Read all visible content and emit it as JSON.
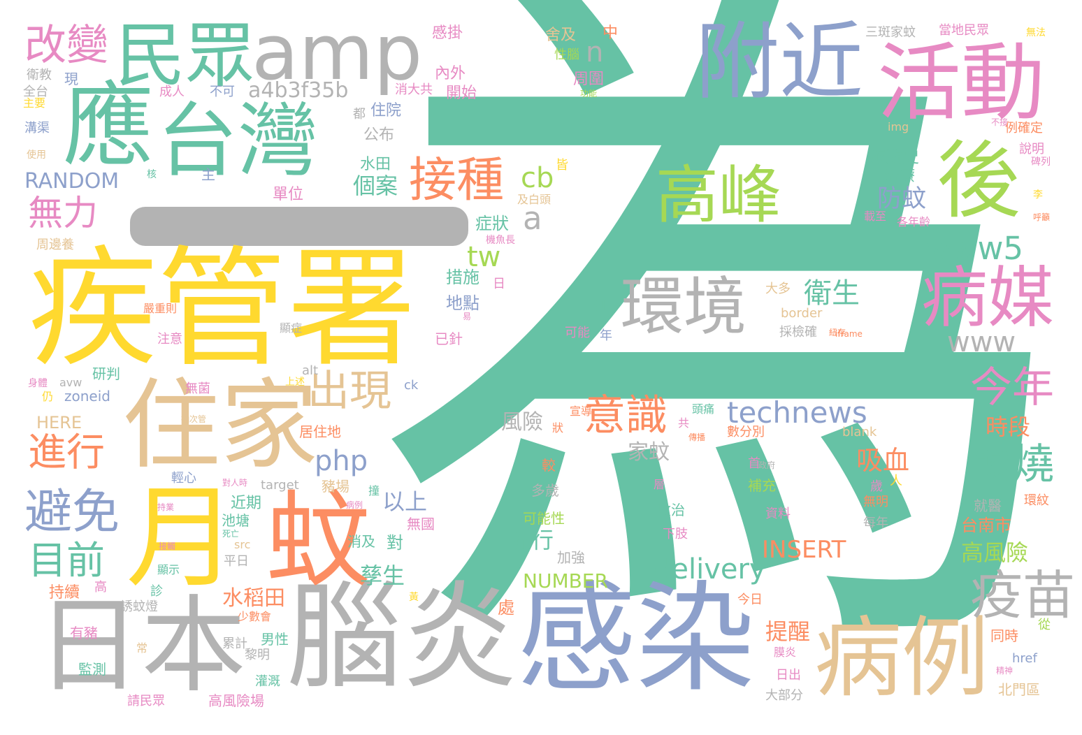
{
  "palette": {
    "teal": "#66c2a5",
    "orange": "#fc8d62",
    "blue": "#8da0cb",
    "pink": "#e78ac3",
    "lime": "#a6d854",
    "yellow": "#ffd92f",
    "tan": "#e5c494",
    "gray": "#b3b3b3"
  },
  "words": {
    "w1": "為",
    "w2": "疾管署",
    "w3": "感染",
    "w4": "腦炎",
    "w5": "日本",
    "w6": "蚊",
    "w7": "月",
    "w8": "住家",
    "w9": "應",
    "w10": "台灣",
    "w11": "活動",
    "w12": "附近",
    "w13": "病例",
    "w14": "amp",
    "w15": "民眾",
    "w16": "後",
    "w17": "高峰",
    "w18": "環境",
    "w19": "病媒",
    "w20": "疫苗",
    "w21": "接種",
    "w22": "避免",
    "w23": "改變",
    "w24": "無力",
    "w25": "進行",
    "w26": "目前",
    "w27": "出現",
    "w28": "意識",
    "w29": "今年",
    "w30": "發燒",
    "w31": "www5",
    "w32": "www",
    "w33": "technews",
    "w34": "delivery",
    "w35": "php",
    "w36": "a4b3f35b",
    "w37": "RANDOM",
    "w38": "INSERT",
    "w39": "NUMBER",
    "w40": "衛生",
    "w41": "防蚊",
    "w42": "吸血",
    "w43": "時段",
    "w44": "高風險",
    "w45": "台南市",
    "w46": "個案",
    "w47": "水稻田",
    "w48": "孳生",
    "w49": "流行",
    "w50": "以上",
    "w51": "提醒",
    "w52": "tw",
    "w53": "cb",
    "w54": "a",
    "w55": "n",
    "w56": "風險",
    "w57": "家蚊",
    "w58": "旅遊史",
    "w59": "治療",
    "w60": "症狀",
    "w61": "措施",
    "w62": "地點",
    "w63": "單位",
    "w64": "水田",
    "w65": "公布",
    "w66": "住院",
    "w67": "周圍",
    "w68": "開始",
    "w69": "內外",
    "w70": "慼掛",
    "w71": "舍及",
    "w72": "性腦",
    "w73": "中",
    "w74": "三斑家蚊",
    "w75": "當地民眾",
    "w76": "無法",
    "w77": "消大共",
    "w78": "成人",
    "w79": "不可",
    "w80": "都",
    "w81": "現",
    "w82": "衛教",
    "w83": "全台",
    "w84": "主要",
    "w85": "溝渠",
    "w86": "使用",
    "w87": "主",
    "w88": "核",
    "w89": "皆",
    "w90": "及白頭",
    "w91": "周邊養",
    "w92": "機魚長",
    "w93": "日",
    "w94": "研判",
    "w95": "注意",
    "w96": "嚴重則",
    "w97": "顯症",
    "w98": "已針",
    "w99": "例",
    "w100": "可能",
    "w101": "年",
    "w102": "大多",
    "w103": "border",
    "w104": "採檢確",
    "w105": "iframe",
    "w106": "img",
    "w107": "例確定",
    "w108": "說明",
    "w109": "碑列",
    "w110": "各年齡",
    "w111": "載至",
    "w112": "alt",
    "w113": "ck",
    "w114": "avw",
    "w115": "zoneid",
    "w116": "HERE",
    "w117": "無菌",
    "w118": "仍",
    "w119": "身體",
    "w120": "上述",
    "w121": "居住地",
    "w122": "數分別",
    "w123": "blank",
    "w124": "target",
    "w125": "豬場",
    "w126": "近期",
    "w127": "池塘",
    "w128": "消及",
    "w129": "對",
    "w130": "無國",
    "w131": "可能性",
    "w132": "收治",
    "w133": "多歲",
    "w134": "下肢",
    "w135": "加強",
    "w136": "平日",
    "w137": "補充",
    "w138": "資料",
    "w139": "無明",
    "w140": "每年",
    "w141": "就醫",
    "w142": "環紋",
    "w143": "輕心",
    "w144": "顯示",
    "w145": "持續",
    "w146": "誘蚊燈",
    "w147": "有豬",
    "w148": "監測",
    "w149": "少數會",
    "w150": "男性",
    "w151": "累計",
    "w152": "黎明",
    "w153": "灌溉",
    "w154": "高風險場",
    "w155": "請民眾",
    "w156": "大部分",
    "w157": "北門區",
    "w158": "日出",
    "w159": "膜炎",
    "w160": "href",
    "w161": "同時",
    "w162": "從",
    "w163": "今日",
    "w164": "首",
    "w165": "層",
    "w166": "處",
    "w167": "較",
    "w168": "宣導",
    "w169": "狀",
    "w170": "頭痛",
    "w171": "共",
    "w172": "src",
    "w173": "高",
    "w174": "診",
    "w175": "常",
    "w176": "黃",
    "w177": "歲",
    "w178": "人",
    "w179": "李",
    "w180": "呼籲",
    "w181": "不接",
    "w182": "功能",
    "w183": "死亡",
    "w184": "對人時",
    "w185": "病例",
    "w186": "接觸",
    "w187": "撞",
    "w188": "紐存",
    "w189": "精神",
    "w190": "易",
    "w191": "持業",
    "w192": "抽次管",
    "w193": "傳播",
    "w194": "政府"
  }
}
